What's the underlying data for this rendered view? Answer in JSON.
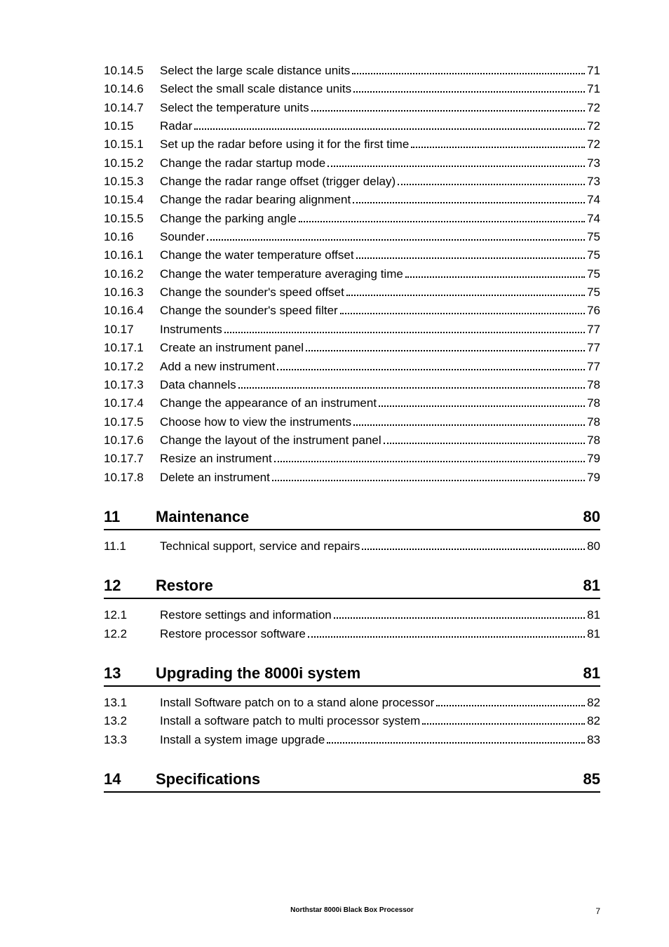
{
  "toc_top": [
    {
      "num": "10.14.5",
      "title": "Select the large scale distance units",
      "page": "71"
    },
    {
      "num": "10.14.6",
      "title": "Select the small scale distance units",
      "page": "71"
    },
    {
      "num": "10.14.7",
      "title": "Select the temperature units",
      "page": "72"
    },
    {
      "num": "10.15",
      "title": "Radar",
      "page": "72"
    },
    {
      "num": "10.15.1",
      "title": "Set up the radar before using it for the first time",
      "page": "72"
    },
    {
      "num": "10.15.2",
      "title": "Change the radar startup mode",
      "page": "73"
    },
    {
      "num": "10.15.3",
      "title": "Change the radar range offset (trigger delay)",
      "page": "73"
    },
    {
      "num": "10.15.4",
      "title": "Change the radar bearing alignment",
      "page": "74"
    },
    {
      "num": "10.15.5",
      "title": "Change the parking angle",
      "page": "74"
    },
    {
      "num": "10.16",
      "title": "Sounder",
      "page": "75"
    },
    {
      "num": "10.16.1",
      "title": "Change the water temperature offset",
      "page": "75"
    },
    {
      "num": "10.16.2",
      "title": "Change the water temperature averaging time",
      "page": "75"
    },
    {
      "num": "10.16.3",
      "title": "Change the sounder's speed offset",
      "page": "75"
    },
    {
      "num": "10.16.4",
      "title": "Change the sounder's speed filter",
      "page": "76"
    },
    {
      "num": "10.17",
      "title": "Instruments",
      "page": "77"
    },
    {
      "num": "10.17.1",
      "title": "Create an instrument panel",
      "page": "77"
    },
    {
      "num": "10.17.2",
      "title": "Add a new instrument",
      "page": "77"
    },
    {
      "num": "10.17.3",
      "title": "Data channels",
      "page": "78"
    },
    {
      "num": "10.17.4",
      "title": "Change the appearance of an instrument",
      "page": "78"
    },
    {
      "num": "10.17.5",
      "title": "Choose how to view the instruments",
      "page": "78"
    },
    {
      "num": "10.17.6",
      "title": "Change the layout of the instrument panel",
      "page": "78"
    },
    {
      "num": "10.17.7",
      "title": "Resize an instrument",
      "page": "79"
    },
    {
      "num": "10.17.8",
      "title": "Delete an instrument",
      "page": "79"
    }
  ],
  "sections": [
    {
      "num": "11",
      "title": "Maintenance",
      "page": "80",
      "items": [
        {
          "num": "11.1",
          "title": "Technical support, service and repairs",
          "page": "80"
        }
      ]
    },
    {
      "num": "12",
      "title": "Restore",
      "page": "81",
      "items": [
        {
          "num": "12.1",
          "title": "Restore settings and information",
          "page": "81"
        },
        {
          "num": "12.2",
          "title": "Restore processor software",
          "page": "81"
        }
      ]
    },
    {
      "num": "13",
      "title": "Upgrading the 8000i system",
      "page": "81",
      "items": [
        {
          "num": "13.1",
          "title": "Install Software patch on to a stand alone processor",
          "page": "82"
        },
        {
          "num": "13.2",
          "title": "Install a software patch to multi processor system",
          "page": "82"
        },
        {
          "num": "13.3",
          "title": "Install a system image upgrade",
          "page": "83"
        }
      ]
    },
    {
      "num": "14",
      "title": "Specifications",
      "page": "85",
      "items": []
    }
  ],
  "footer": {
    "center": "Northstar 8000i Black Box Processor",
    "pagenum": "7"
  }
}
